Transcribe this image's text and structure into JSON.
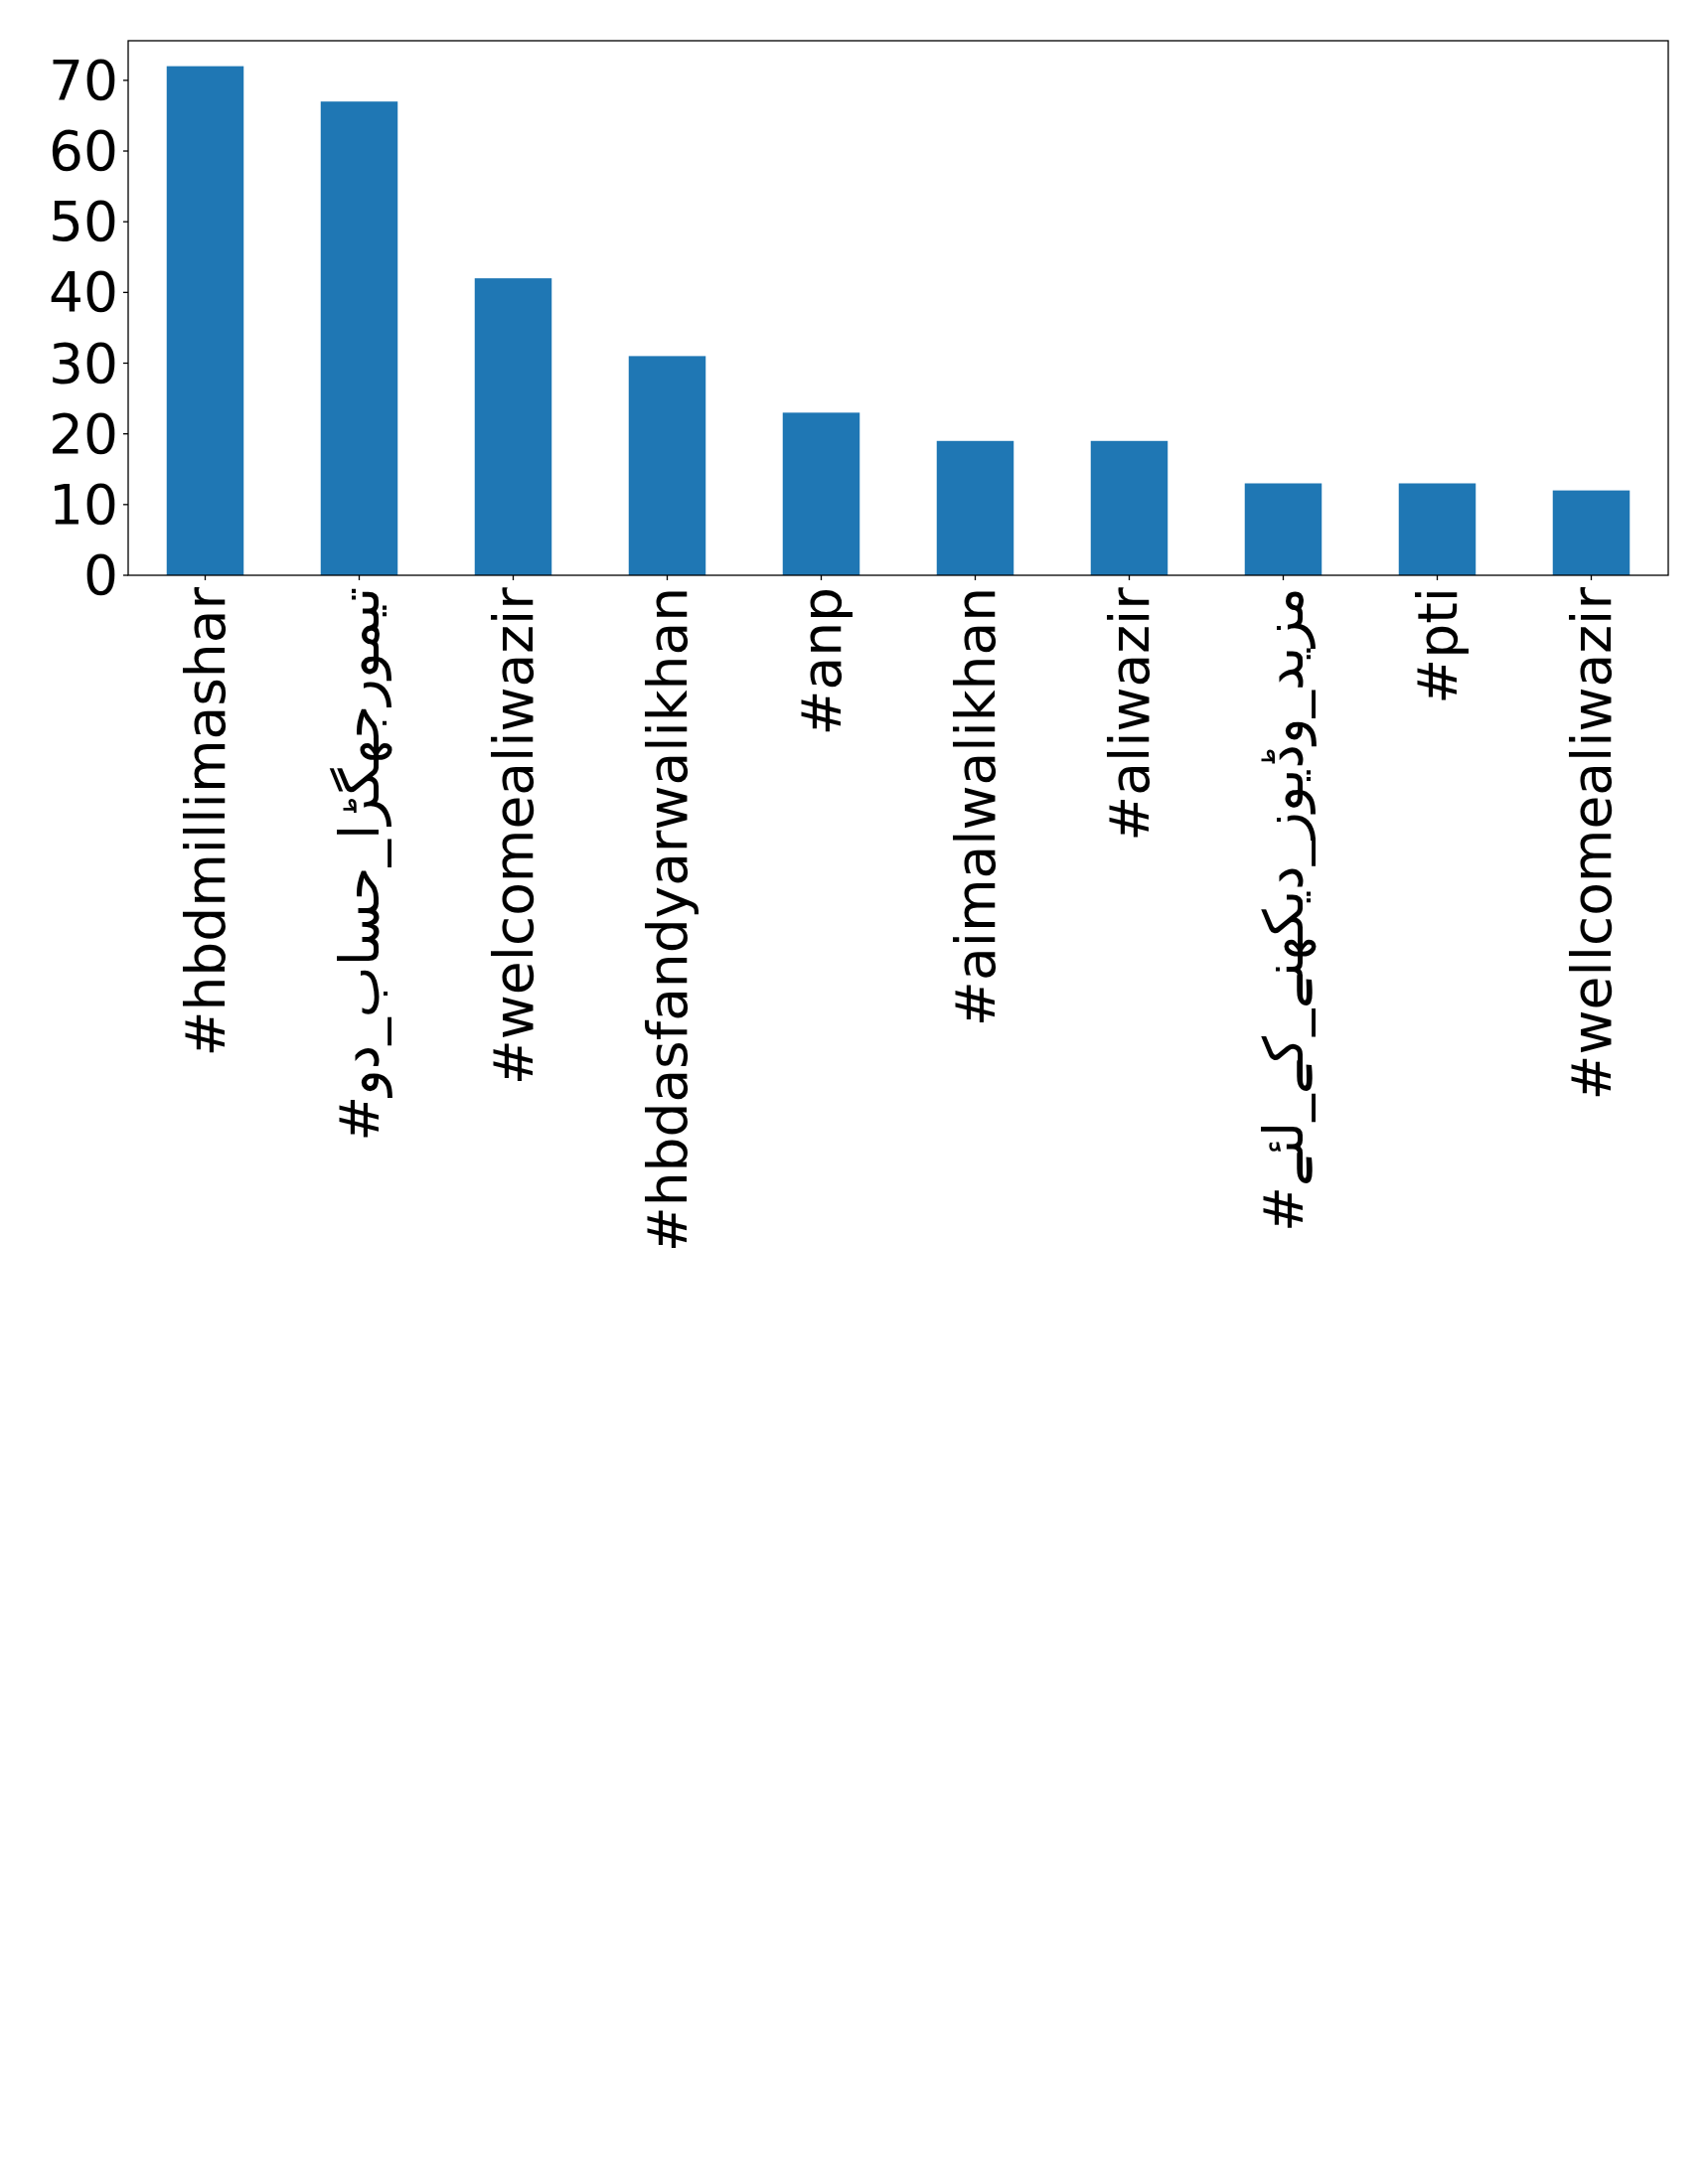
{
  "chart_data": {
    "type": "bar",
    "categories": [
      "#hbdmillimashar",
      "#تیمورجھگڑا_حساب_دو",
      "#welcomealiwazir",
      "#hbdasfandyarwalikhan",
      "#anp",
      "#aimalwalikhan",
      "#aliwazir",
      "#مزید_وڈیوز_دیکھنے_کے_لئے",
      "#pti",
      "#wellcomealiwazir"
    ],
    "values": [
      72,
      67,
      42,
      31,
      23,
      19,
      19,
      13,
      13,
      12
    ],
    "color": "#1f77b4",
    "ylim": [
      0,
      75.6
    ],
    "yticks": [
      0,
      10,
      20,
      30,
      40,
      50,
      60,
      70
    ]
  }
}
